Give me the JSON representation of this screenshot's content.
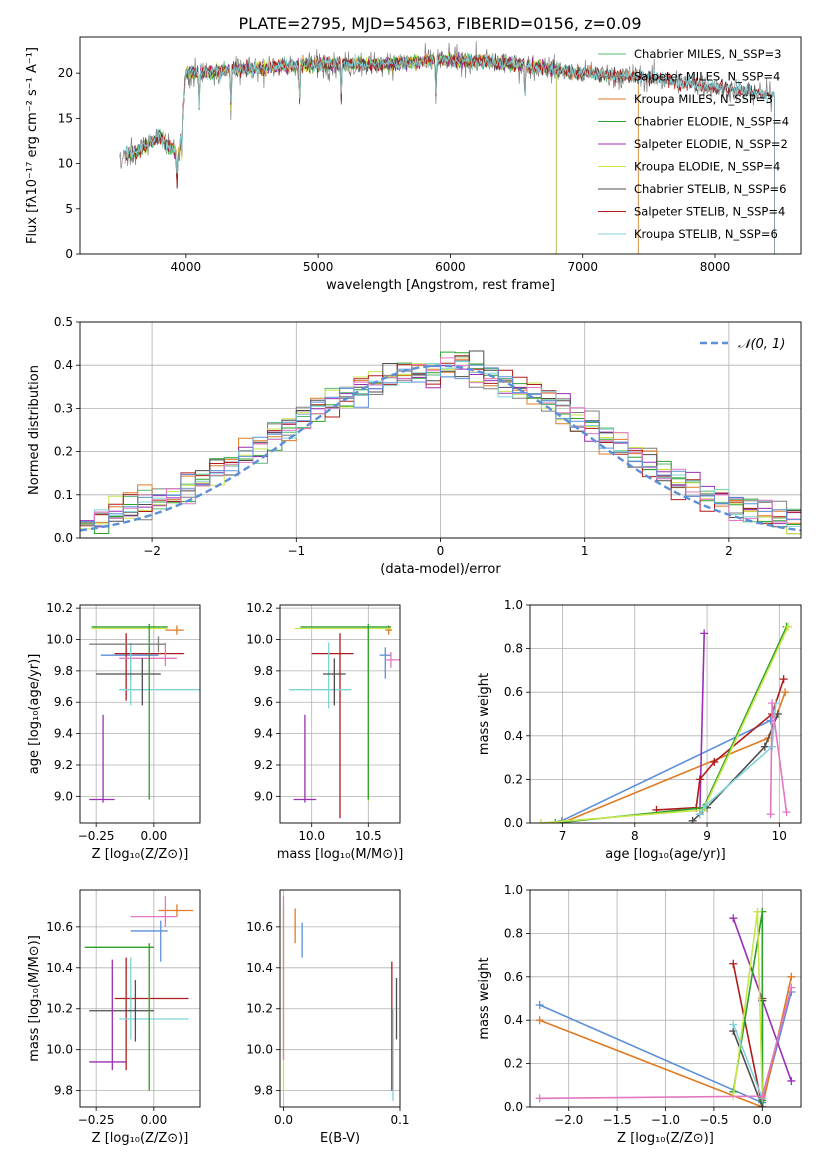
{
  "figure": {
    "title": "PLATE=2795, MJD=54563, FIBERID=0156, z=0.09"
  },
  "chart_data": [
    {
      "id": "spectrum",
      "type": "line",
      "xlabel": "wavelength [Angstrom, rest frame]",
      "ylabel": "Flux [fλ10⁻¹⁷ erg cm⁻² s⁻¹ A⁻¹]",
      "xlim": [
        3200,
        8650
      ],
      "ylim": [
        0,
        24
      ],
      "xticks": [
        4000,
        5000,
        6000,
        7000,
        8000
      ],
      "yticks": [
        0,
        5,
        10,
        15,
        20
      ],
      "grid": false,
      "legend_position": "top-right",
      "series": [
        {
          "name": "Chabrier MILES, N_SSP=3",
          "color": "#56b873",
          "range": [
            3540,
            7420
          ]
        },
        {
          "name": "Salpeter MILES, N_SSP=4",
          "color": "#7f7f7f",
          "range": [
            3500,
            8450
          ]
        },
        {
          "name": "Kroupa MILES, N_SSP=3",
          "color": "#e07b24",
          "range": [
            3540,
            7420
          ]
        },
        {
          "name": "Chabrier ELODIE, N_SSP=4",
          "color": "#2ca02c",
          "range": [
            3540,
            6800
          ]
        },
        {
          "name": "Salpeter ELODIE, N_SSP=2",
          "color": "#9b2fb5",
          "range": [
            3540,
            6800
          ]
        },
        {
          "name": "Kroupa ELODIE, N_SSP=4",
          "color": "#c8e64a",
          "range": [
            3540,
            6800
          ]
        },
        {
          "name": "Chabrier STELIB, N_SSP=6",
          "color": "#4d4d4d",
          "range": [
            3540,
            8450
          ]
        },
        {
          "name": "Salpeter STELIB, N_SSP=4",
          "color": "#b01b1b",
          "range": [
            3540,
            8450
          ]
        },
        {
          "name": "Kroupa STELIB, N_SSP=6",
          "color": "#7fd3d8",
          "range": [
            3540,
            8450
          ]
        }
      ],
      "continuum_anchors": [
        [
          3500,
          10.5
        ],
        [
          3650,
          11.5
        ],
        [
          3800,
          13
        ],
        [
          3950,
          11
        ],
        [
          4000,
          20
        ],
        [
          4500,
          20.5
        ],
        [
          5000,
          21
        ],
        [
          5500,
          21
        ],
        [
          6000,
          21.5
        ],
        [
          6500,
          21
        ],
        [
          7000,
          20
        ],
        [
          7500,
          19.5
        ],
        [
          8000,
          18.5
        ],
        [
          8450,
          17.5
        ]
      ]
    },
    {
      "id": "residuals",
      "type": "line",
      "xlabel": "(data-model)/error",
      "ylabel": "Normed distribution",
      "xlim": [
        -2.5,
        2.5
      ],
      "ylim": [
        0,
        0.5
      ],
      "xticks": [
        -2,
        -1,
        0,
        1,
        2
      ],
      "yticks": [
        0.0,
        0.1,
        0.2,
        0.3,
        0.4,
        0.5
      ],
      "grid": true,
      "legend_position": "top-right",
      "legend_label": "𝒩(0, 1)",
      "normal": {
        "mean": 0,
        "sigma": 1,
        "color": "#5b8fd9"
      },
      "bin_width": 0.1,
      "series_colors": [
        "#56b873",
        "#7f7f7f",
        "#e07b24",
        "#2ca02c",
        "#9b2fb5",
        "#c8e64a",
        "#4d4d4d",
        "#b01b1b",
        "#7fd3d8",
        "#e377c2",
        "#5b8fd9"
      ]
    },
    {
      "id": "z-age",
      "type": "scatter",
      "xlabel": "Z [log₁₀(Z/Z⊙)]",
      "ylabel": "age  [log₁₀(age/yr)]",
      "xlim": [
        -0.32,
        0.2
      ],
      "ylim": [
        8.83,
        10.22
      ],
      "xticks": [
        -0.25,
        0.0
      ],
      "yticks": [
        9.0,
        9.2,
        9.4,
        9.6,
        9.8,
        10.0,
        10.2
      ],
      "grid": true,
      "points": [
        {
          "x": -0.1,
          "y": 9.9,
          "xerr": [
            0.13,
            0.12
          ],
          "yerr": [
            0.16,
            0.05
          ],
          "color": "#5b8fd9"
        },
        {
          "x": -0.12,
          "y": 9.91,
          "xerr": [
            0.05,
            0.25
          ],
          "yerr": [
            0.3,
            0.13
          ],
          "color": "#b01b1b"
        },
        {
          "x": 0.1,
          "y": 10.06,
          "xerr": [
            0.05,
            0.03
          ],
          "yerr": [
            0.03,
            0.03
          ],
          "color": "#e07b24"
        },
        {
          "x": 0.0,
          "y": 10.07,
          "xerr": [
            0.27,
            0.06
          ],
          "yerr": [
            0.02,
            0.02
          ],
          "color": "#c8e64a"
        },
        {
          "x": 0.05,
          "y": 9.88,
          "xerr": [
            0.2,
            0.05
          ],
          "yerr": [
            0.05,
            0.1
          ],
          "color": "#e377c2"
        },
        {
          "x": -0.1,
          "y": 9.68,
          "xerr": [
            0.05,
            0.32
          ],
          "yerr": [
            0.1,
            0.3
          ],
          "color": "#7fd3d8"
        },
        {
          "x": -0.05,
          "y": 9.78,
          "xerr": [
            0.2,
            0.08
          ],
          "yerr": [
            0.2,
            0.1
          ],
          "color": "#4d4d4d"
        },
        {
          "x": -0.02,
          "y": 10.08,
          "xerr": [
            0.25,
            0.08
          ],
          "yerr": [
            1.1,
            0.02
          ],
          "color": "#2ca02c"
        },
        {
          "x": -0.22,
          "y": 8.98,
          "xerr": [
            0.06,
            0.05
          ],
          "yerr": [
            0.02,
            0.54
          ],
          "color": "#9b2fb5"
        },
        {
          "x": 0.02,
          "y": 9.97,
          "xerr": [
            0.3,
            0.03
          ],
          "yerr": [
            0.05,
            0.05
          ],
          "color": "#7f7f7f"
        }
      ]
    },
    {
      "id": "mass-age",
      "type": "scatter",
      "xlabel": "mass [log₁₀(M/M⊙)]",
      "ylabel": "",
      "xlim": [
        9.72,
        10.78
      ],
      "ylim": [
        8.83,
        10.22
      ],
      "xticks": [
        10.0,
        10.5
      ],
      "yticks": [
        9.0,
        9.2,
        9.4,
        9.6,
        9.8,
        10.0,
        10.2
      ],
      "grid": true,
      "points": [
        {
          "x": 10.65,
          "y": 9.9,
          "xerr": [
            0.05,
            0.05
          ],
          "yerr": [
            0.15,
            0.05
          ],
          "color": "#5b8fd9"
        },
        {
          "x": 10.25,
          "y": 9.91,
          "xerr": [
            0.25,
            0.12
          ],
          "yerr": [
            1.05,
            0.13
          ],
          "color": "#b01b1b"
        },
        {
          "x": 10.68,
          "y": 10.06,
          "xerr": [
            0.03,
            0.03
          ],
          "yerr": [
            0.03,
            0.03
          ],
          "color": "#e07b24"
        },
        {
          "x": 10.5,
          "y": 10.07,
          "xerr": [
            0.65,
            0.2
          ],
          "yerr": [
            1.1,
            0.02
          ],
          "color": "#c8e64a"
        },
        {
          "x": 10.7,
          "y": 9.87,
          "xerr": [
            0.05,
            0.08
          ],
          "yerr": [
            0.05,
            0.05
          ],
          "color": "#e377c2"
        },
        {
          "x": 10.15,
          "y": 9.68,
          "xerr": [
            0.35,
            0.2
          ],
          "yerr": [
            0.12,
            0.3
          ],
          "color": "#7fd3d8"
        },
        {
          "x": 10.2,
          "y": 9.78,
          "xerr": [
            0.1,
            0.1
          ],
          "yerr": [
            0.2,
            0.1
          ],
          "color": "#4d4d4d"
        },
        {
          "x": 10.5,
          "y": 10.08,
          "xerr": [
            0.6,
            0.2
          ],
          "yerr": [
            1.1,
            0.02
          ],
          "color": "#2ca02c"
        },
        {
          "x": 9.94,
          "y": 8.98,
          "xerr": [
            0.1,
            0.1
          ],
          "yerr": [
            0.02,
            0.54
          ],
          "color": "#9b2fb5"
        }
      ]
    },
    {
      "id": "age-weight",
      "type": "line",
      "xlabel": "age  [log₁₀(age/yr)]",
      "ylabel": "mass weight",
      "xlim": [
        6.55,
        10.3
      ],
      "ylim": [
        0,
        1.0
      ],
      "xticks": [
        7,
        8,
        9,
        10
      ],
      "yticks": [
        0.0,
        0.2,
        0.4,
        0.6,
        0.8,
        1.0
      ],
      "grid": true,
      "series": [
        {
          "color": "#5b8fd9",
          "points": [
            [
              6.99,
              0.01
            ],
            [
              9.88,
              0.47
            ]
          ]
        },
        {
          "color": "#e07b24",
          "points": [
            [
              6.99,
              0.0
            ],
            [
              9.85,
              0.39
            ],
            [
              10.08,
              0.6
            ]
          ]
        },
        {
          "color": "#9b2fb5",
          "points": [
            [
              8.9,
              0.04
            ],
            [
              8.96,
              0.87
            ]
          ]
        },
        {
          "color": "#b01b1b",
          "points": [
            [
              8.3,
              0.06
            ],
            [
              8.85,
              0.07
            ],
            [
              8.9,
              0.2
            ],
            [
              9.1,
              0.28
            ],
            [
              9.9,
              0.5
            ],
            [
              10.06,
              0.66
            ]
          ]
        },
        {
          "color": "#4d4d4d",
          "points": [
            [
              8.8,
              0.01
            ],
            [
              9.0,
              0.07
            ],
            [
              9.8,
              0.35
            ],
            [
              9.98,
              0.5
            ]
          ]
        },
        {
          "color": "#2ca02c",
          "points": [
            [
              6.9,
              0.0
            ],
            [
              8.95,
              0.07
            ],
            [
              10.1,
              0.9
            ]
          ]
        },
        {
          "color": "#c8e64a",
          "points": [
            [
              6.7,
              0.0
            ],
            [
              8.95,
              0.06
            ],
            [
              10.12,
              0.9
            ]
          ]
        },
        {
          "color": "#7fd3d8",
          "points": [
            [
              8.9,
              0.04
            ],
            [
              8.98,
              0.08
            ],
            [
              9.9,
              0.35
            ],
            [
              9.95,
              0.55
            ]
          ]
        },
        {
          "color": "#e377c2",
          "points": [
            [
              9.88,
              0.04
            ],
            [
              9.9,
              0.55
            ],
            [
              10.1,
              0.05
            ]
          ]
        }
      ]
    },
    {
      "id": "z-mass",
      "type": "scatter",
      "xlabel": "Z [log₁₀(Z/Z⊙)]",
      "ylabel": "mass [log₁₀(M/M⊙)]",
      "xlim": [
        -0.32,
        0.2
      ],
      "ylim": [
        9.72,
        10.78
      ],
      "xticks": [
        -0.25,
        0.0
      ],
      "yticks": [
        9.8,
        10.0,
        10.2,
        10.4,
        10.6
      ],
      "grid": true,
      "points": [
        {
          "x": 0.03,
          "y": 10.58,
          "xerr": [
            0.13,
            0.03
          ],
          "yerr": [
            0.15,
            0.05
          ],
          "color": "#5b8fd9"
        },
        {
          "x": -0.12,
          "y": 10.25,
          "xerr": [
            0.05,
            0.27
          ],
          "yerr": [
            0.35,
            0.2
          ],
          "color": "#b01b1b"
        },
        {
          "x": 0.1,
          "y": 10.68,
          "xerr": [
            0.08,
            0.07
          ],
          "yerr": [
            0.03,
            0.03
          ],
          "color": "#e07b24"
        },
        {
          "x": -0.02,
          "y": 10.5,
          "xerr": [
            0.25,
            0.02
          ],
          "yerr": [
            0.7,
            0.02
          ],
          "color": "#c8e64a"
        },
        {
          "x": 0.05,
          "y": 10.65,
          "xerr": [
            0.15,
            0.05
          ],
          "yerr": [
            0.05,
            0.1
          ],
          "color": "#e377c2"
        },
        {
          "x": -0.1,
          "y": 10.15,
          "xerr": [
            0.05,
            0.25
          ],
          "yerr": [
            0.1,
            0.3
          ],
          "color": "#7fd3d8"
        },
        {
          "x": -0.08,
          "y": 10.19,
          "xerr": [
            0.2,
            0.08
          ],
          "yerr": [
            0.15,
            0.15
          ],
          "color": "#4d4d4d"
        },
        {
          "x": -0.02,
          "y": 10.5,
          "xerr": [
            0.28,
            0.02
          ],
          "yerr": [
            0.7,
            0.02
          ],
          "color": "#2ca02c"
        },
        {
          "x": -0.18,
          "y": 9.94,
          "xerr": [
            0.1,
            0.06
          ],
          "yerr": [
            0.04,
            0.5
          ],
          "color": "#9b2fb5"
        }
      ]
    },
    {
      "id": "ebv-mass",
      "type": "scatter",
      "xlabel": "E(B-V)",
      "ylabel": "",
      "xlim": [
        -0.003,
        0.1
      ],
      "ylim": [
        9.72,
        10.78
      ],
      "xticks": [
        0.0,
        0.1
      ],
      "yticks": [
        9.8,
        10.0,
        10.2,
        10.4,
        10.6
      ],
      "grid": true,
      "points": [
        {
          "x": 0.0,
          "y": 10.5,
          "xerr": [
            0,
            0
          ],
          "yerr": [
            0.7,
            0.2
          ],
          "color": "#c8e64a"
        },
        {
          "x": 0.0,
          "y": 10.65,
          "xerr": [
            0,
            0
          ],
          "yerr": [
            0.7,
            0.1
          ],
          "color": "#e377c2"
        },
        {
          "x": 0.01,
          "y": 10.62,
          "xerr": [
            0,
            0
          ],
          "yerr": [
            0.1,
            0.07
          ],
          "color": "#e07b24"
        },
        {
          "x": 0.016,
          "y": 10.55,
          "xerr": [
            0,
            0
          ],
          "yerr": [
            0.1,
            0.07
          ],
          "color": "#5b8fd9"
        },
        {
          "x": 0.093,
          "y": 10.3,
          "xerr": [
            0,
            0
          ],
          "yerr": [
            0.5,
            0.13
          ],
          "color": "#b01b1b"
        },
        {
          "x": 0.094,
          "y": 10.0,
          "xerr": [
            0,
            0
          ],
          "yerr": [
            0.25,
            0.2
          ],
          "color": "#7fd3d8"
        },
        {
          "x": 0.097,
          "y": 10.2,
          "xerr": [
            0,
            0
          ],
          "yerr": [
            0.15,
            0.15
          ],
          "color": "#4d4d4d"
        }
      ]
    },
    {
      "id": "z-weight",
      "type": "line",
      "xlabel": "Z [log₁₀(Z/Z⊙)]",
      "ylabel": "mass weight",
      "xlim": [
        -2.4,
        0.4
      ],
      "ylim": [
        0,
        1.0
      ],
      "xticks": [
        -2.0,
        -1.5,
        -1.0,
        -0.5,
        0.0
      ],
      "yticks": [
        0.0,
        0.2,
        0.4,
        0.6,
        0.8,
        1.0
      ],
      "grid": true,
      "series": [
        {
          "color": "#5b8fd9",
          "points": [
            [
              -2.3,
              0.47
            ],
            [
              0.0,
              0.02
            ],
            [
              0.3,
              0.53
            ]
          ]
        },
        {
          "color": "#e07b24",
          "points": [
            [
              -2.3,
              0.4
            ],
            [
              0.0,
              0.0
            ],
            [
              0.3,
              0.6
            ]
          ]
        },
        {
          "color": "#9b2fb5",
          "points": [
            [
              -0.3,
              0.87
            ],
            [
              0.3,
              0.12
            ]
          ]
        },
        {
          "color": "#b01b1b",
          "points": [
            [
              -0.3,
              0.66
            ],
            [
              0.0,
              0.0
            ],
            [
              0.0,
              0.5
            ]
          ]
        },
        {
          "color": "#4d4d4d",
          "points": [
            [
              -0.3,
              0.35
            ],
            [
              0.0,
              0.0
            ],
            [
              0.0,
              0.49
            ]
          ]
        },
        {
          "color": "#2ca02c",
          "points": [
            [
              -0.3,
              0.07
            ],
            [
              0.0,
              0.9
            ],
            [
              0.0,
              0.03
            ]
          ]
        },
        {
          "color": "#c8e64a",
          "points": [
            [
              -0.3,
              0.05
            ],
            [
              -0.05,
              0.9
            ],
            [
              0.0,
              0.05
            ]
          ]
        },
        {
          "color": "#7fd3d8",
          "points": [
            [
              -0.3,
              0.38
            ],
            [
              0.0,
              0.04
            ]
          ]
        },
        {
          "color": "#e377c2",
          "points": [
            [
              -2.3,
              0.04
            ],
            [
              0.0,
              0.05
            ],
            [
              0.3,
              0.55
            ]
          ]
        }
      ]
    }
  ]
}
